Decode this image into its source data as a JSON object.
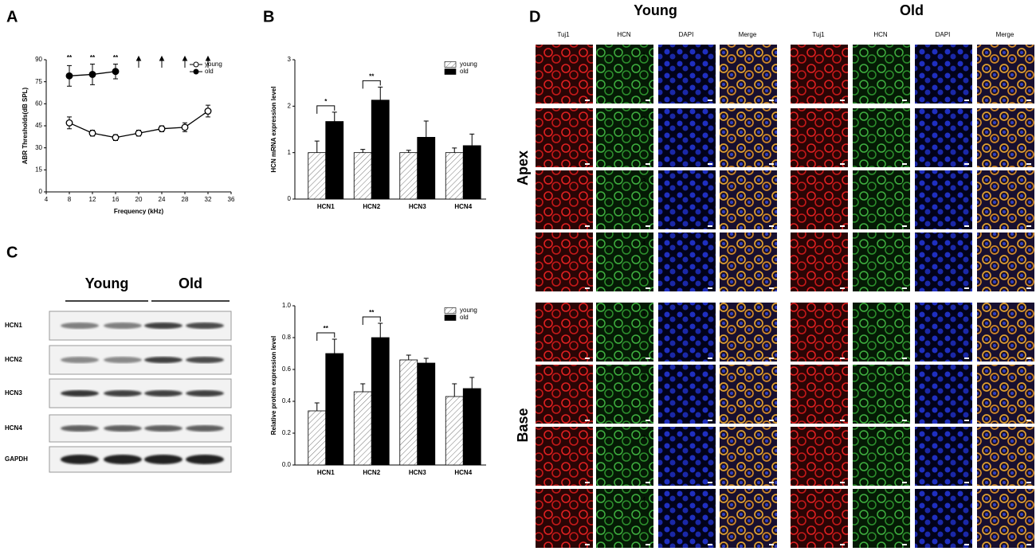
{
  "chart_data": [
    {
      "type": "line",
      "label": "A",
      "x": [
        8,
        12,
        16,
        20,
        24,
        28,
        32
      ],
      "series": [
        {
          "name": "young",
          "color": "#000000",
          "marker_fill": "#ffffff",
          "values": [
            47,
            40,
            37,
            40,
            43,
            44,
            55
          ],
          "errors": [
            4,
            2,
            2,
            2,
            2,
            3,
            4
          ]
        },
        {
          "name": "old",
          "color": "#000000",
          "marker_fill": "#000000",
          "values": [
            79,
            80,
            82,
            null,
            null,
            null,
            null
          ],
          "errors": [
            7,
            7,
            5,
            null,
            null,
            null,
            null
          ]
        }
      ],
      "xlim": [
        4,
        36
      ],
      "xticks": [
        4,
        8,
        12,
        16,
        20,
        24,
        28,
        32,
        36
      ],
      "ylim": [
        0,
        90
      ],
      "yticks": [
        0,
        15,
        30,
        45,
        60,
        75,
        90
      ],
      "xlabel": "Frequency (kHz)",
      "ylabel": "ABR Thresholds(dB SPL)",
      "annotations": [
        {
          "text": "**",
          "x": 8
        },
        {
          "text": "**",
          "x": 12
        },
        {
          "text": "**",
          "x": 16
        }
      ],
      "legend": "upper right"
    },
    {
      "type": "bar",
      "label": "B",
      "categories": [
        "HCN1",
        "HCN2",
        "HCN3",
        "HCN4"
      ],
      "series": [
        {
          "name": "young",
          "color": "#ffffff",
          "hatch": true,
          "values": [
            1.0,
            1.0,
            1.0,
            1.0
          ],
          "errors": [
            0.25,
            0.07,
            0.05,
            0.1
          ]
        },
        {
          "name": "old",
          "color": "#000000",
          "hatch": false,
          "values": [
            1.67,
            2.13,
            1.33,
            1.15
          ],
          "errors": [
            0.2,
            0.28,
            0.35,
            0.25
          ]
        }
      ],
      "ylim": [
        0,
        3
      ],
      "yticks": [
        0,
        1,
        2,
        3
      ],
      "ylabel": "HCN mRNA expression level",
      "annotations": [
        {
          "text": "*",
          "x": "HCN1"
        },
        {
          "text": "**",
          "x": "HCN2"
        }
      ],
      "legend": "upper right"
    },
    {
      "type": "bar",
      "label": "C",
      "categories": [
        "HCN1",
        "HCN2",
        "HCN3",
        "HCN4"
      ],
      "series": [
        {
          "name": "young",
          "color": "#ffffff",
          "hatch": true,
          "values": [
            0.34,
            0.46,
            0.66,
            0.43
          ],
          "errors": [
            0.05,
            0.05,
            0.03,
            0.08
          ]
        },
        {
          "name": "old",
          "color": "#000000",
          "hatch": false,
          "values": [
            0.7,
            0.8,
            0.64,
            0.48
          ],
          "errors": [
            0.09,
            0.09,
            0.03,
            0.07
          ]
        }
      ],
      "ylim": [
        0,
        1
      ],
      "yticks": [
        {
          "value": 0,
          "label": "0.0"
        },
        0.2,
        0.4,
        0.6,
        0.8,
        {
          "value": 1,
          "label": "1.0"
        }
      ],
      "ylabel": "Relative protein expression level",
      "annotations": [
        {
          "text": "**",
          "x": "HCN1"
        },
        {
          "text": "**",
          "x": "HCN2"
        }
      ],
      "legend": "upper right"
    }
  ],
  "blot": {
    "groups": [
      "Young",
      "Old"
    ],
    "rows": [
      "HCN1",
      "HCN2",
      "HCN3",
      "HCN4",
      "GAPDH"
    ]
  },
  "micrographs": {
    "label": "D",
    "groups": [
      "Young",
      "Old"
    ],
    "channels": [
      "Tuj1",
      "HCN",
      "DAPI",
      "Merge"
    ],
    "regions": [
      "Apex",
      "Base"
    ],
    "fields": [
      "1",
      "2",
      "3",
      "4"
    ]
  }
}
